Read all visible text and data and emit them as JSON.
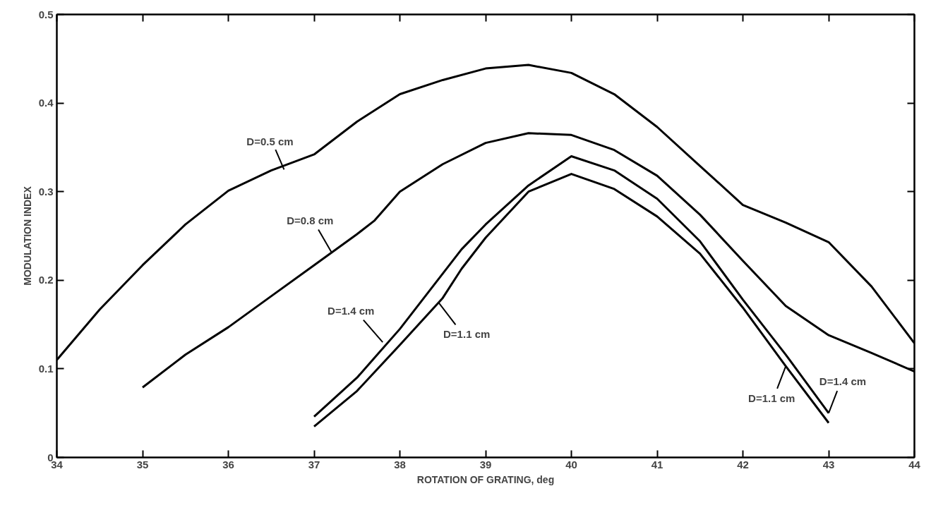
{
  "chart_data": {
    "type": "line",
    "xlabel": "ROTATION OF GRATING, deg",
    "ylabel": "MODULATION INDEX",
    "xlim": [
      34,
      44
    ],
    "ylim": [
      0,
      0.5
    ],
    "xticks": [
      34,
      35,
      36,
      37,
      38,
      39,
      40,
      41,
      42,
      43,
      44
    ],
    "yticks": [
      0,
      0.1,
      0.2,
      0.3,
      0.4,
      0.5
    ],
    "grid": false,
    "marker": "none",
    "line_style": "solid",
    "series": [
      {
        "color": "#000000",
        "x": [
          34,
          34.5,
          35,
          35.5,
          36,
          36.5,
          37,
          37.5,
          38,
          38.5,
          39,
          39.5,
          40,
          40.5,
          41,
          41.5,
          42,
          42.5,
          43,
          43.5,
          44
        ],
        "values": [
          0.11,
          0.167,
          0.217,
          0.263,
          0.301,
          0.324,
          0.342,
          0.379,
          0.41,
          0.426,
          0.439,
          0.443,
          0.434,
          0.41,
          0.373,
          0.329,
          0.285,
          0.265,
          0.243,
          0.193,
          0.129
        ]
      },
      {
        "color": "#000000",
        "x": [
          35,
          35.5,
          36,
          36.5,
          37,
          37.5,
          37.7,
          38,
          38.5,
          39,
          39.5,
          40,
          40.5,
          41,
          41.5,
          42,
          42.5,
          43,
          43.5,
          44
        ],
        "values": [
          0.079,
          0.116,
          0.147,
          0.182,
          0.217,
          0.252,
          0.267,
          0.3,
          0.331,
          0.355,
          0.366,
          0.364,
          0.347,
          0.318,
          0.274,
          0.222,
          0.171,
          0.138,
          0.118,
          0.097
        ]
      },
      {
        "color": "#000000",
        "x": [
          37,
          37.5,
          38,
          38.72,
          39,
          39.5,
          40,
          40.5,
          41,
          41.5,
          42,
          42.5,
          43
        ],
        "values": [
          0.046,
          0.09,
          0.145,
          0.235,
          0.263,
          0.307,
          0.34,
          0.324,
          0.292,
          0.244,
          0.178,
          0.116,
          0.05
        ]
      },
      {
        "color": "#000000",
        "x": [
          37,
          37.5,
          38,
          38.5,
          38.72,
          39,
          39.5,
          40,
          40.5,
          41,
          41.5,
          42,
          42.5,
          43
        ],
        "values": [
          0.035,
          0.075,
          0.127,
          0.18,
          0.213,
          0.248,
          0.3,
          0.32,
          0.303,
          0.272,
          0.23,
          0.169,
          0.103,
          0.039
        ]
      }
    ],
    "annotations": [
      {
        "text": "D=0.5 cm",
        "x": 36.65,
        "y": 0.325
      },
      {
        "text": "D=0.8 cm",
        "x": 37.2,
        "y": 0.232
      },
      {
        "text": "D=1.4 cm",
        "x": 37.8,
        "y": 0.13
      },
      {
        "text": "D=1.1 cm",
        "x": 38.45,
        "y": 0.175
      },
      {
        "text": "D=1.4 cm",
        "x": 43.0,
        "y": 0.05
      },
      {
        "text": "D=1.1 cm",
        "x": 42.5,
        "y": 0.103
      }
    ]
  }
}
